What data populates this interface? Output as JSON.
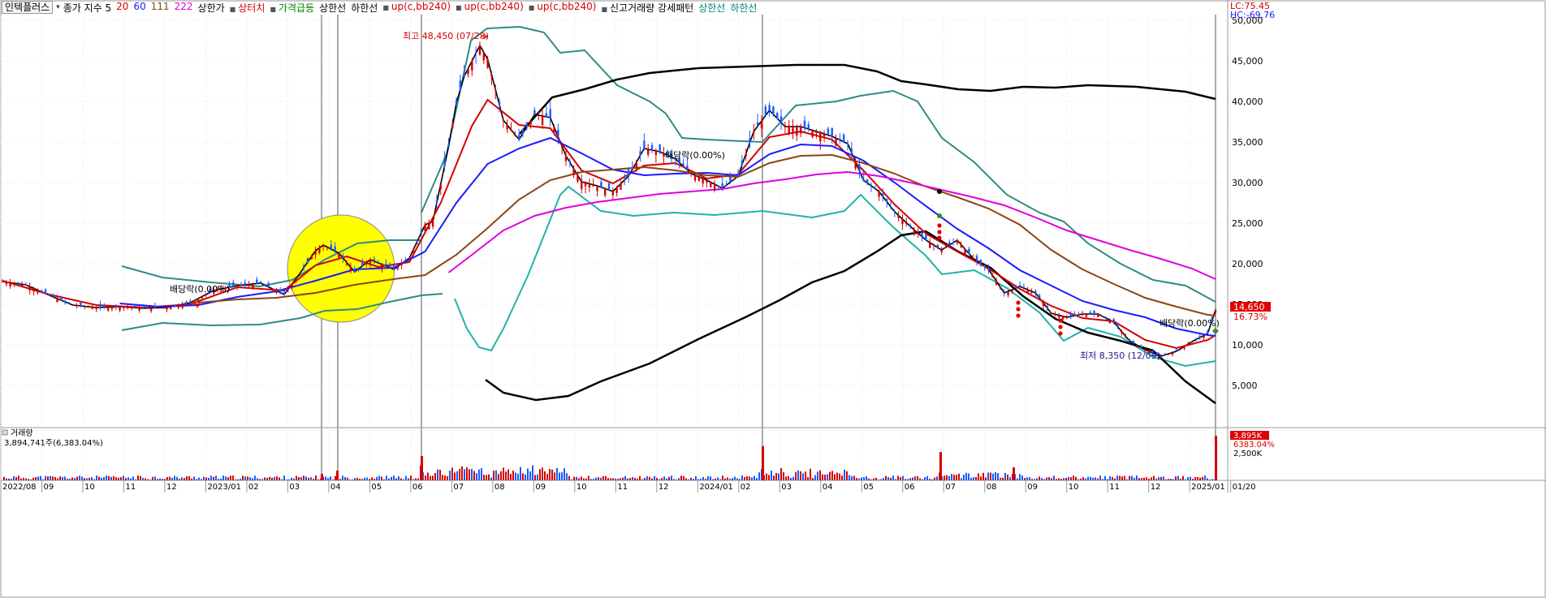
{
  "header": {
    "ticker": "인텍플러스",
    "items": [
      {
        "text": "종가 지수 5",
        "color": "#000000"
      },
      {
        "text": "20",
        "color": "#d40000"
      },
      {
        "text": "60",
        "color": "#1a1aff"
      },
      {
        "text": "111",
        "color": "#8b4513"
      },
      {
        "text": "222",
        "color": "#e000e0"
      },
      {
        "text": "상한가",
        "color": "#000000"
      },
      {
        "text": "상터치",
        "color": "#d40000"
      },
      {
        "text": "가격급등",
        "color": "#008000"
      },
      {
        "text": "상한선",
        "color": "#000000"
      },
      {
        "text": "하한선",
        "color": "#000000"
      },
      {
        "text": "up(c,bb240)",
        "color": "#d40000"
      },
      {
        "text": "up(c,bb240)",
        "color": "#d40000"
      },
      {
        "text": "up(c,bb240)",
        "color": "#d40000"
      },
      {
        "text": "신고거래량 강세패턴",
        "color": "#000000"
      },
      {
        "text": "상한선",
        "color": "#008080"
      },
      {
        "text": "하한선",
        "color": "#008080"
      }
    ],
    "top_right": [
      "LC:75.45",
      "HC:-69.76"
    ]
  },
  "price_axis": {
    "ticks": [
      "50,000",
      "45,000",
      "40,000",
      "35,000",
      "30,000",
      "25,000",
      "20,000",
      "15,000",
      "10,000",
      "5,000"
    ],
    "current_price": "14,650",
    "current_change": "16.73%"
  },
  "annotations": {
    "high": "최고 48,450 (07/28)",
    "low": "최저 8,350 (12/09)",
    "div1": "배당락(0.00%)",
    "div2": "배당락(0.00%)",
    "div3": "배당락(0.00%)"
  },
  "volume_panel": {
    "title": "거래량",
    "value": "3,894,741주(6,383.04%)",
    "right_value": "3,895K",
    "right_pct": "6383.04%",
    "tick": "2,500K"
  },
  "chart_data": {
    "type": "line",
    "title": "",
    "ylim": [
      0,
      51000
    ],
    "x_labels": [
      "2022/08",
      "09",
      "10",
      "11",
      "12",
      "2023/01",
      "02",
      "03",
      "04",
      "05",
      "06",
      "07",
      "08",
      "09",
      "10",
      "11",
      "12",
      "2024/01",
      "02",
      "03",
      "04",
      "05",
      "06",
      "07",
      "08",
      "09",
      "10",
      "11",
      "12",
      "2025/01",
      "01/20"
    ],
    "series": [
      {
        "name": "5",
        "color": "#000000",
        "values": [
          [
            0,
            17800
          ],
          [
            3,
            17400
          ],
          [
            6,
            16100
          ],
          [
            9,
            14900
          ],
          [
            12,
            14600
          ],
          [
            15,
            14700
          ],
          [
            18,
            14500
          ],
          [
            21,
            14600
          ],
          [
            24,
            15200
          ],
          [
            27,
            16700
          ],
          [
            30,
            17300
          ],
          [
            33,
            17600
          ],
          [
            36,
            16200
          ],
          [
            38,
            18800
          ],
          [
            40,
            21600
          ],
          [
            41,
            22300
          ],
          [
            43,
            21300
          ],
          [
            45,
            19000
          ],
          [
            47,
            20500
          ],
          [
            50,
            19300
          ],
          [
            52,
            20700
          ],
          [
            54,
            24800
          ],
          [
            55,
            25200
          ],
          [
            57,
            34400
          ],
          [
            58,
            39800
          ],
          [
            59,
            43100
          ],
          [
            61,
            46900
          ],
          [
            62,
            45200
          ],
          [
            64,
            37700
          ],
          [
            66,
            35300
          ],
          [
            68,
            38400
          ],
          [
            70,
            38000
          ],
          [
            72,
            33300
          ],
          [
            74,
            30100
          ],
          [
            76,
            29600
          ],
          [
            78,
            28900
          ],
          [
            80,
            30800
          ],
          [
            82,
            34200
          ],
          [
            84,
            33800
          ],
          [
            86,
            32900
          ],
          [
            88,
            31100
          ],
          [
            90,
            30300
          ],
          [
            92,
            29300
          ],
          [
            94,
            30800
          ],
          [
            96,
            36300
          ],
          [
            98,
            38900
          ],
          [
            100,
            36900
          ],
          [
            102,
            36900
          ],
          [
            104,
            36300
          ],
          [
            106,
            35700
          ],
          [
            108,
            34800
          ],
          [
            110,
            30300
          ],
          [
            112,
            28900
          ],
          [
            114,
            26400
          ],
          [
            116,
            24600
          ],
          [
            118,
            22900
          ],
          [
            120,
            21700
          ],
          [
            122,
            22900
          ],
          [
            124,
            20700
          ],
          [
            126,
            19300
          ],
          [
            128,
            16400
          ],
          [
            130,
            17200
          ],
          [
            132,
            16400
          ],
          [
            134,
            13900
          ],
          [
            136,
            13400
          ],
          [
            138,
            13800
          ],
          [
            140,
            13800
          ],
          [
            142,
            12800
          ],
          [
            144,
            10500
          ],
          [
            146,
            9400
          ],
          [
            148,
            8600
          ],
          [
            150,
            9200
          ],
          [
            152,
            10400
          ],
          [
            154,
            11400
          ],
          [
            155,
            14300
          ]
        ]
      },
      {
        "name": "20",
        "color": "#d40000",
        "values": [
          [
            0,
            17900
          ],
          [
            6,
            16200
          ],
          [
            12,
            14900
          ],
          [
            18,
            14600
          ],
          [
            24,
            15000
          ],
          [
            30,
            17100
          ],
          [
            36,
            16700
          ],
          [
            40,
            19800
          ],
          [
            44,
            20900
          ],
          [
            48,
            19600
          ],
          [
            52,
            20200
          ],
          [
            56,
            27500
          ],
          [
            60,
            37000
          ],
          [
            62,
            40200
          ],
          [
            66,
            37100
          ],
          [
            70,
            36700
          ],
          [
            74,
            31500
          ],
          [
            78,
            29900
          ],
          [
            82,
            32100
          ],
          [
            86,
            32400
          ],
          [
            90,
            30500
          ],
          [
            94,
            31000
          ],
          [
            98,
            35600
          ],
          [
            102,
            36300
          ],
          [
            106,
            35300
          ],
          [
            110,
            31500
          ],
          [
            114,
            27300
          ],
          [
            118,
            23700
          ],
          [
            122,
            21500
          ],
          [
            126,
            19400
          ],
          [
            130,
            16900
          ],
          [
            134,
            14800
          ],
          [
            138,
            13300
          ],
          [
            142,
            12900
          ],
          [
            146,
            10600
          ],
          [
            150,
            9600
          ],
          [
            154,
            10600
          ],
          [
            155,
            11200
          ]
        ]
      },
      {
        "name": "60",
        "color": "#1a1aff",
        "values": [
          [
            15,
            15100
          ],
          [
            20,
            14700
          ],
          [
            25,
            14900
          ],
          [
            30,
            15900
          ],
          [
            35,
            16600
          ],
          [
            40,
            17900
          ],
          [
            45,
            19300
          ],
          [
            50,
            19500
          ],
          [
            54,
            21500
          ],
          [
            58,
            27500
          ],
          [
            62,
            32300
          ],
          [
            66,
            34200
          ],
          [
            70,
            35500
          ],
          [
            74,
            33600
          ],
          [
            78,
            31600
          ],
          [
            82,
            30900
          ],
          [
            86,
            31100
          ],
          [
            90,
            31200
          ],
          [
            94,
            30900
          ],
          [
            98,
            33500
          ],
          [
            102,
            34700
          ],
          [
            106,
            34500
          ],
          [
            110,
            32700
          ],
          [
            114,
            30000
          ],
          [
            118,
            27100
          ],
          [
            122,
            24300
          ],
          [
            126,
            21900
          ],
          [
            130,
            19200
          ],
          [
            134,
            17300
          ],
          [
            138,
            15400
          ],
          [
            142,
            14300
          ],
          [
            146,
            13400
          ],
          [
            150,
            12000
          ],
          [
            154,
            11200
          ],
          [
            155,
            11100
          ]
        ]
      },
      {
        "name": "111",
        "color": "#8b4513",
        "values": [
          [
            25,
            15200
          ],
          [
            30,
            15600
          ],
          [
            35,
            15800
          ],
          [
            40,
            16400
          ],
          [
            45,
            17400
          ],
          [
            50,
            18100
          ],
          [
            54,
            18600
          ],
          [
            58,
            21100
          ],
          [
            62,
            24400
          ],
          [
            66,
            27900
          ],
          [
            70,
            30300
          ],
          [
            74,
            31300
          ],
          [
            78,
            31600
          ],
          [
            82,
            31900
          ],
          [
            86,
            31500
          ],
          [
            90,
            30900
          ],
          [
            94,
            30700
          ],
          [
            98,
            32400
          ],
          [
            102,
            33300
          ],
          [
            106,
            33400
          ],
          [
            110,
            32400
          ],
          [
            114,
            31100
          ],
          [
            118,
            29500
          ],
          [
            122,
            28200
          ],
          [
            126,
            26800
          ],
          [
            130,
            24800
          ],
          [
            134,
            21700
          ],
          [
            138,
            19300
          ],
          [
            142,
            17500
          ],
          [
            146,
            15800
          ],
          [
            150,
            14700
          ],
          [
            154,
            13700
          ],
          [
            155,
            13600
          ]
        ]
      },
      {
        "name": "222",
        "color": "#e000e0",
        "values": [
          [
            57,
            18900
          ],
          [
            60,
            21100
          ],
          [
            64,
            24100
          ],
          [
            68,
            25900
          ],
          [
            72,
            26900
          ],
          [
            76,
            27600
          ],
          [
            80,
            28100
          ],
          [
            84,
            28600
          ],
          [
            88,
            28900
          ],
          [
            92,
            29200
          ],
          [
            96,
            29900
          ],
          [
            100,
            30400
          ],
          [
            104,
            31000
          ],
          [
            108,
            31300
          ],
          [
            112,
            30800
          ],
          [
            116,
            30000
          ],
          [
            120,
            29100
          ],
          [
            124,
            28200
          ],
          [
            128,
            27200
          ],
          [
            132,
            25700
          ],
          [
            136,
            24100
          ],
          [
            140,
            22900
          ],
          [
            144,
            21700
          ],
          [
            148,
            20600
          ],
          [
            152,
            19400
          ],
          [
            155,
            18100
          ]
        ]
      }
    ]
  }
}
